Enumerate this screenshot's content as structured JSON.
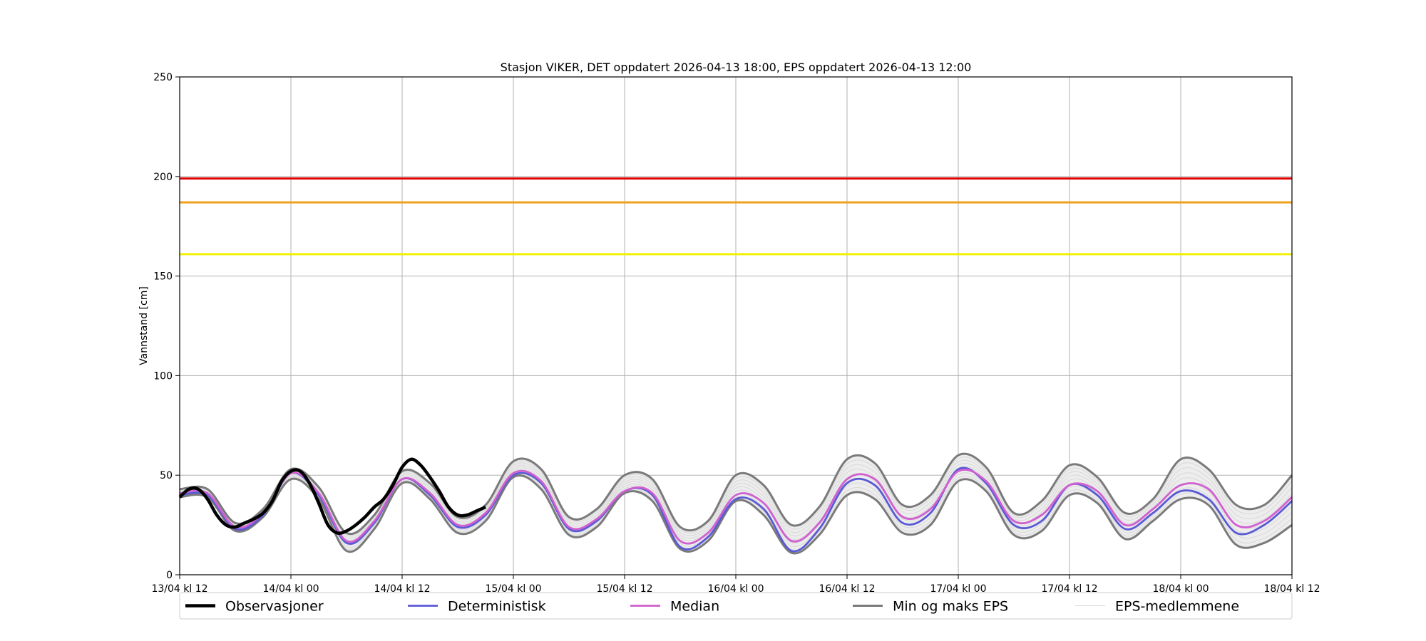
{
  "chart_data": {
    "type": "line",
    "title": "Stasjon VIKER, DET oppdatert 2026-04-13 18:00, EPS oppdatert 2026-04-13 12:00",
    "xlabel": "",
    "ylabel": "Vannstand [cm]",
    "xlim": [
      0,
      120
    ],
    "ylim": [
      0,
      250
    ],
    "x_ticks": [
      {
        "x": 0,
        "label": "13/04 kl 12"
      },
      {
        "x": 12,
        "label": "14/04 kl 00"
      },
      {
        "x": 24,
        "label": "14/04 kl 12"
      },
      {
        "x": 36,
        "label": "15/04 kl 00"
      },
      {
        "x": 48,
        "label": "15/04 kl 12"
      },
      {
        "x": 60,
        "label": "16/04 kl 00"
      },
      {
        "x": 72,
        "label": "16/04 kl 12"
      },
      {
        "x": 84,
        "label": "17/04 kl 00"
      },
      {
        "x": 96,
        "label": "17/04 kl 12"
      },
      {
        "x": 108,
        "label": "18/04 kl 00"
      },
      {
        "x": 120,
        "label": "18/04 kl 12"
      }
    ],
    "y_ticks": [
      0,
      50,
      100,
      150,
      200,
      250
    ],
    "grid": true,
    "legend_position": "bottom",
    "threshold_lines": [
      {
        "y": 199,
        "color": "#e00000"
      },
      {
        "y": 187,
        "color": "#f0a020"
      },
      {
        "y": 161,
        "color": "#f0f000"
      }
    ],
    "series": [
      {
        "name": "Observasjoner",
        "color": "#000000",
        "x": [
          0,
          1,
          2,
          3,
          4,
          5,
          6,
          7,
          8,
          9,
          10,
          11,
          12,
          13,
          14,
          15,
          16,
          17,
          18,
          19,
          20,
          21,
          22,
          23,
          24,
          25,
          26,
          27,
          28,
          29,
          30,
          31,
          32,
          33
        ],
        "values": [
          39,
          43,
          43,
          38,
          30,
          25,
          24,
          26,
          28,
          31,
          37,
          47,
          52,
          52,
          46,
          36,
          25,
          21,
          22,
          25,
          29,
          34,
          38,
          45,
          54,
          58,
          55,
          49,
          42,
          34,
          30,
          30,
          32,
          34
        ]
      },
      {
        "name": "Deterministisk",
        "color": "#5a5ad6",
        "x": [
          0,
          3,
          6,
          9,
          12,
          15,
          18,
          21,
          24,
          27,
          30,
          33,
          36,
          39,
          42,
          45,
          48,
          51,
          54,
          57,
          60,
          63,
          66,
          69,
          72,
          75,
          78,
          81,
          84,
          87,
          90,
          93,
          96,
          99,
          102,
          105,
          108,
          111,
          114,
          117,
          120
        ],
        "values": [
          40,
          40,
          23,
          30,
          51,
          40,
          16,
          26,
          48,
          40,
          24,
          30,
          50,
          46,
          23,
          27,
          42,
          40,
          14,
          19,
          38,
          33,
          12,
          23,
          46,
          45,
          26,
          31,
          53,
          46,
          25,
          27,
          45,
          40,
          23,
          31,
          42,
          38,
          21,
          25,
          37
        ]
      },
      {
        "name": "Median",
        "color": "#d060d0",
        "x": [
          0,
          3,
          6,
          9,
          12,
          15,
          18,
          21,
          24,
          27,
          30,
          33,
          36,
          39,
          42,
          45,
          48,
          51,
          54,
          57,
          60,
          63,
          66,
          69,
          72,
          75,
          78,
          81,
          84,
          87,
          90,
          93,
          96,
          99,
          102,
          105,
          108,
          111,
          114,
          117,
          120
        ],
        "values": [
          41,
          41,
          24,
          31,
          51,
          41,
          17,
          27,
          48,
          41,
          25,
          31,
          51,
          47,
          24,
          28,
          42,
          41,
          17,
          21,
          40,
          36,
          17,
          26,
          48,
          48,
          29,
          33,
          52,
          47,
          27,
          30,
          45,
          42,
          25,
          33,
          45,
          43,
          25,
          27,
          39
        ]
      },
      {
        "name": "Min og maks EPS",
        "color": "#7a7a7a",
        "x": [
          0,
          3,
          6,
          9,
          12,
          15,
          18,
          21,
          24,
          27,
          30,
          33,
          36,
          39,
          42,
          45,
          48,
          51,
          54,
          57,
          60,
          63,
          66,
          69,
          72,
          75,
          78,
          81,
          84,
          87,
          90,
          93,
          96,
          99,
          102,
          105,
          108,
          111,
          114,
          117,
          120
        ],
        "values_max": [
          43,
          43,
          26,
          33,
          53,
          44,
          21,
          30,
          52,
          46,
          29,
          35,
          57,
          53,
          29,
          33,
          50,
          48,
          24,
          27,
          50,
          45,
          25,
          34,
          58,
          56,
          35,
          40,
          60,
          54,
          31,
          37,
          55,
          49,
          31,
          38,
          58,
          53,
          35,
          35,
          50
        ],
        "values_min": [
          39,
          39,
          22,
          29,
          48,
          38,
          12,
          23,
          46,
          38,
          21,
          27,
          49,
          43,
          20,
          24,
          41,
          37,
          13,
          17,
          37,
          30,
          11,
          20,
          40,
          38,
          21,
          25,
          47,
          42,
          20,
          22,
          40,
          36,
          18,
          27,
          38,
          35,
          15,
          16,
          25
        ]
      },
      {
        "name": "EPS-medlemmene",
        "color": "#d8d8d8"
      }
    ]
  }
}
